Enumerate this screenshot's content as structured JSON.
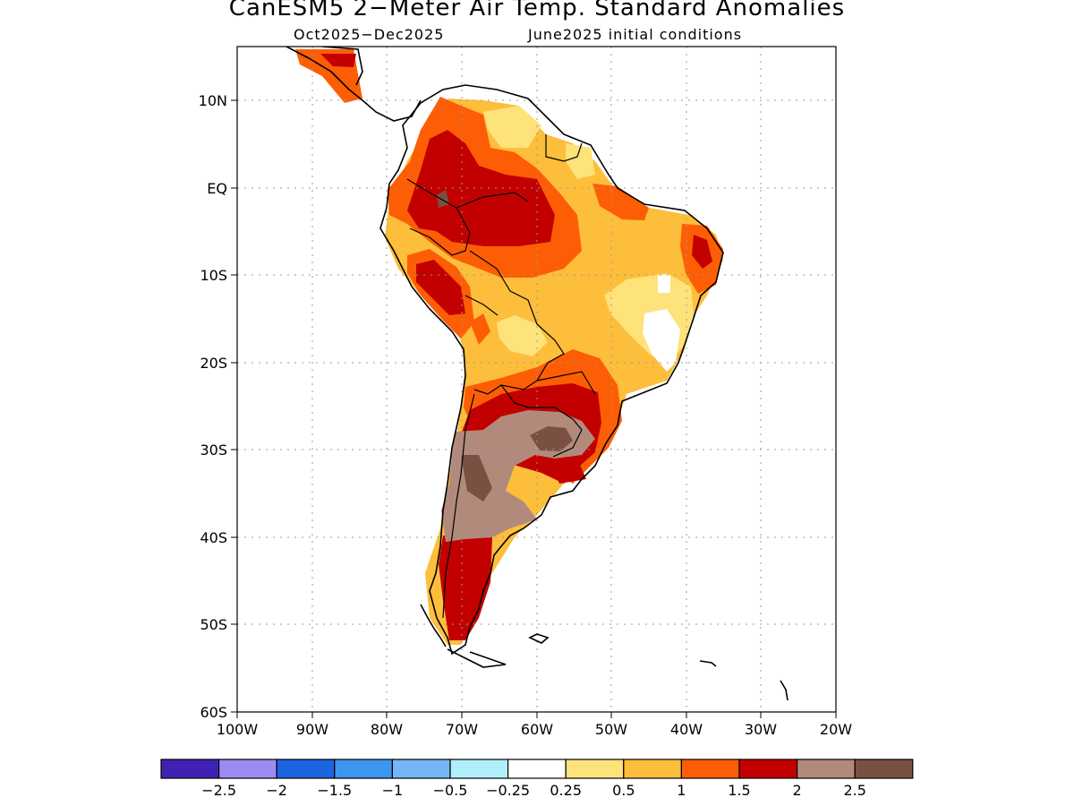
{
  "title": "CanESM5 2−Meter Air Temp. Standard Anomalies",
  "subtitle_left": "Oct2025−Dec2025",
  "subtitle_right": "June2025 initial conditions",
  "lat_ticks": [
    "10N",
    "EQ",
    "10S",
    "20S",
    "30S",
    "40S",
    "50S",
    "60S"
  ],
  "lon_ticks": [
    "100W",
    "90W",
    "80W",
    "70W",
    "60W",
    "50W",
    "40W",
    "30W",
    "20W"
  ],
  "colorbar": {
    "colors": [
      "#3f22b3",
      "#9c8cf2",
      "#1d64e0",
      "#3e95ef",
      "#76b5f6",
      "#b0eefb",
      "#ffffff",
      "#fee27a",
      "#fdbe3c",
      "#fd5e05",
      "#c20000",
      "#b28a7c",
      "#7a5043"
    ],
    "labels": [
      "−2.5",
      "−2",
      "−1.5",
      "−1",
      "−0.5",
      "−0.25",
      "0.25",
      "0.5",
      "1",
      "1.5",
      "2",
      "2.5"
    ]
  }
}
